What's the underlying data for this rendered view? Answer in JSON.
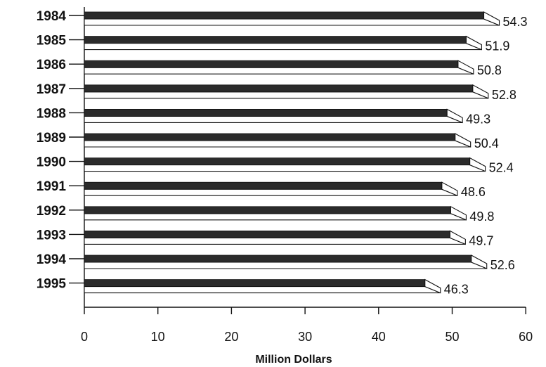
{
  "chart_data": {
    "type": "bar",
    "orientation": "horizontal",
    "title": "",
    "categories": [
      "1984",
      "1985",
      "1986",
      "1987",
      "1988",
      "1989",
      "1990",
      "1991",
      "1992",
      "1993",
      "1994",
      "1995"
    ],
    "values": [
      54.3,
      51.9,
      50.8,
      52.8,
      49.3,
      50.4,
      52.4,
      48.6,
      49.8,
      49.7,
      52.6,
      46.3
    ],
    "value_labels": [
      "54.3",
      "51.9",
      "50.8",
      "52.8",
      "49.3",
      "50.4",
      "52.4",
      "48.6",
      "49.8",
      "49.7",
      "52.6",
      "46.3"
    ],
    "xlabel": "Million Dollars",
    "ylabel": "",
    "xlim": [
      0,
      60
    ],
    "xticks": [
      0,
      10,
      20,
      30,
      40,
      50,
      60
    ],
    "xtick_labels": [
      "0",
      "10",
      "20",
      "30",
      "40",
      "50",
      "60"
    ],
    "grid": false,
    "style": "3d",
    "colors": {
      "bar_top": "#2b2b2b",
      "bar_face": "#ffffff",
      "stroke": "#111111"
    }
  }
}
